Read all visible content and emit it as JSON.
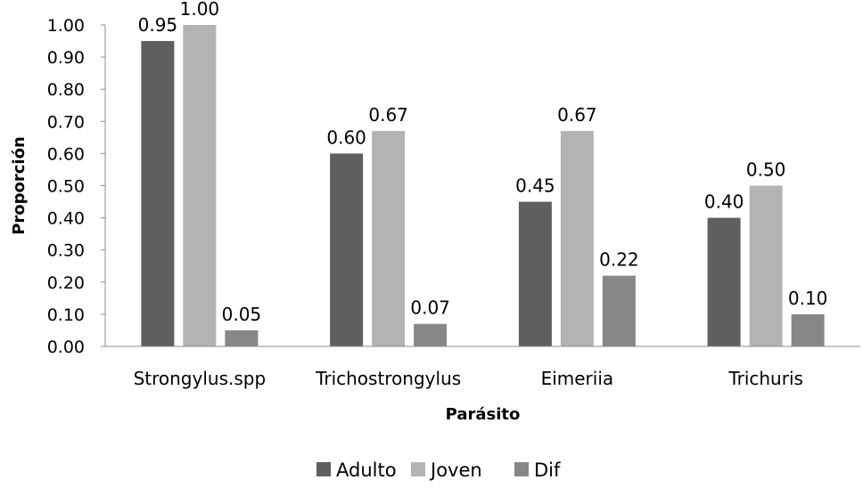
{
  "chart_data": {
    "type": "bar",
    "xlabel": "Parásito",
    "ylabel": "Proporción",
    "ylim": [
      0,
      1
    ],
    "yticks": [
      "0.00",
      "0.10",
      "0.20",
      "0.30",
      "0.40",
      "0.50",
      "0.60",
      "0.70",
      "0.80",
      "0.90",
      "1.00"
    ],
    "categories": [
      "Strongylus.spp",
      "Trichostrongylus",
      "Eimeriia",
      "Trichuris"
    ],
    "series": [
      {
        "name": "Adulto",
        "color": "#5f5f5f",
        "values": [
          0.95,
          0.6,
          0.45,
          0.4
        ],
        "labels": [
          "0.95",
          "0.60",
          "0.45",
          "0.40"
        ]
      },
      {
        "name": "Joven",
        "color": "#b3b3b3",
        "values": [
          1.0,
          0.67,
          0.67,
          0.5
        ],
        "labels": [
          "1.00",
          "0.67",
          "0.67",
          "0.50"
        ]
      },
      {
        "name": "Dif",
        "color": "#878787",
        "values": [
          0.05,
          0.07,
          0.22,
          0.1
        ],
        "labels": [
          "0.05",
          "0.07",
          "0.22",
          "0.10"
        ]
      }
    ],
    "legend_position": "bottom",
    "grid": false
  }
}
